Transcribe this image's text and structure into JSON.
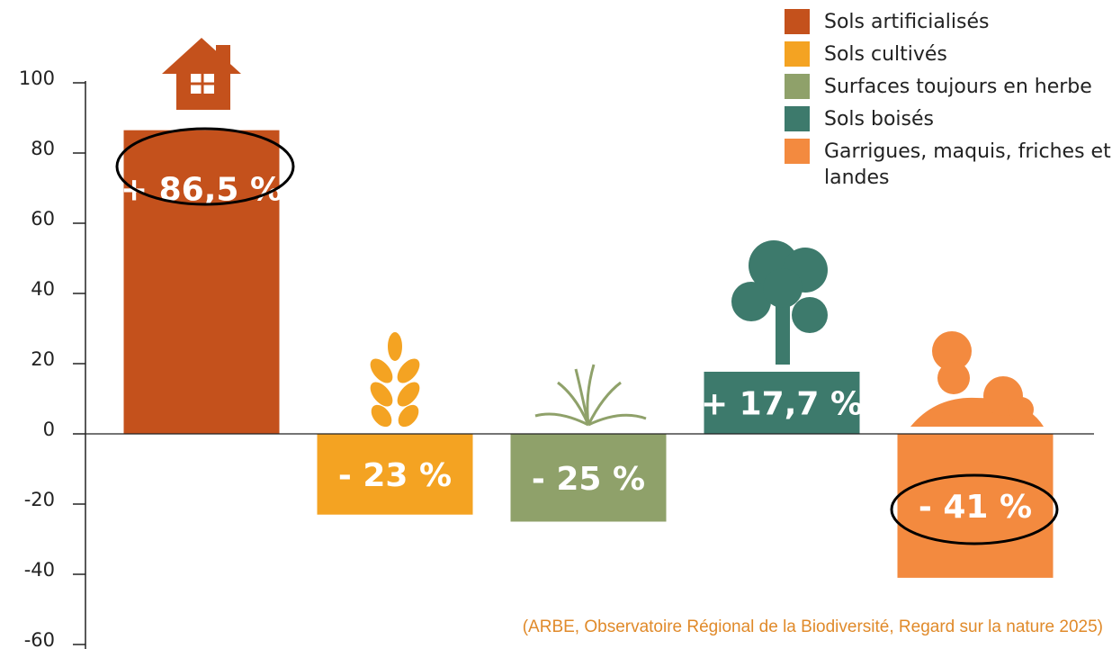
{
  "chart_data": {
    "type": "bar",
    "categories": [
      "Sols artificialisés",
      "Sols cultivés",
      "Surfaces toujours en herbe",
      "Sols boisés",
      "Garrigues, maquis, friches et landes"
    ],
    "values": [
      86.5,
      -23,
      -25,
      17.7,
      -41
    ],
    "value_labels": [
      "+ 86,5 %",
      "- 23 %",
      "- 25 %",
      "+ 17,7 %",
      "- 41 %"
    ],
    "colors": [
      "#c4511c",
      "#f4a322",
      "#8fa16a",
      "#3d7a6c",
      "#f38a3f"
    ],
    "ylim": [
      -60,
      100
    ],
    "yticks": [
      -60,
      -40,
      -20,
      0,
      20,
      40,
      60,
      80,
      100
    ],
    "annotation": "(ARBE, Observatoire Régional de la Biodiversité, Regard sur la nature 2025)"
  }
}
